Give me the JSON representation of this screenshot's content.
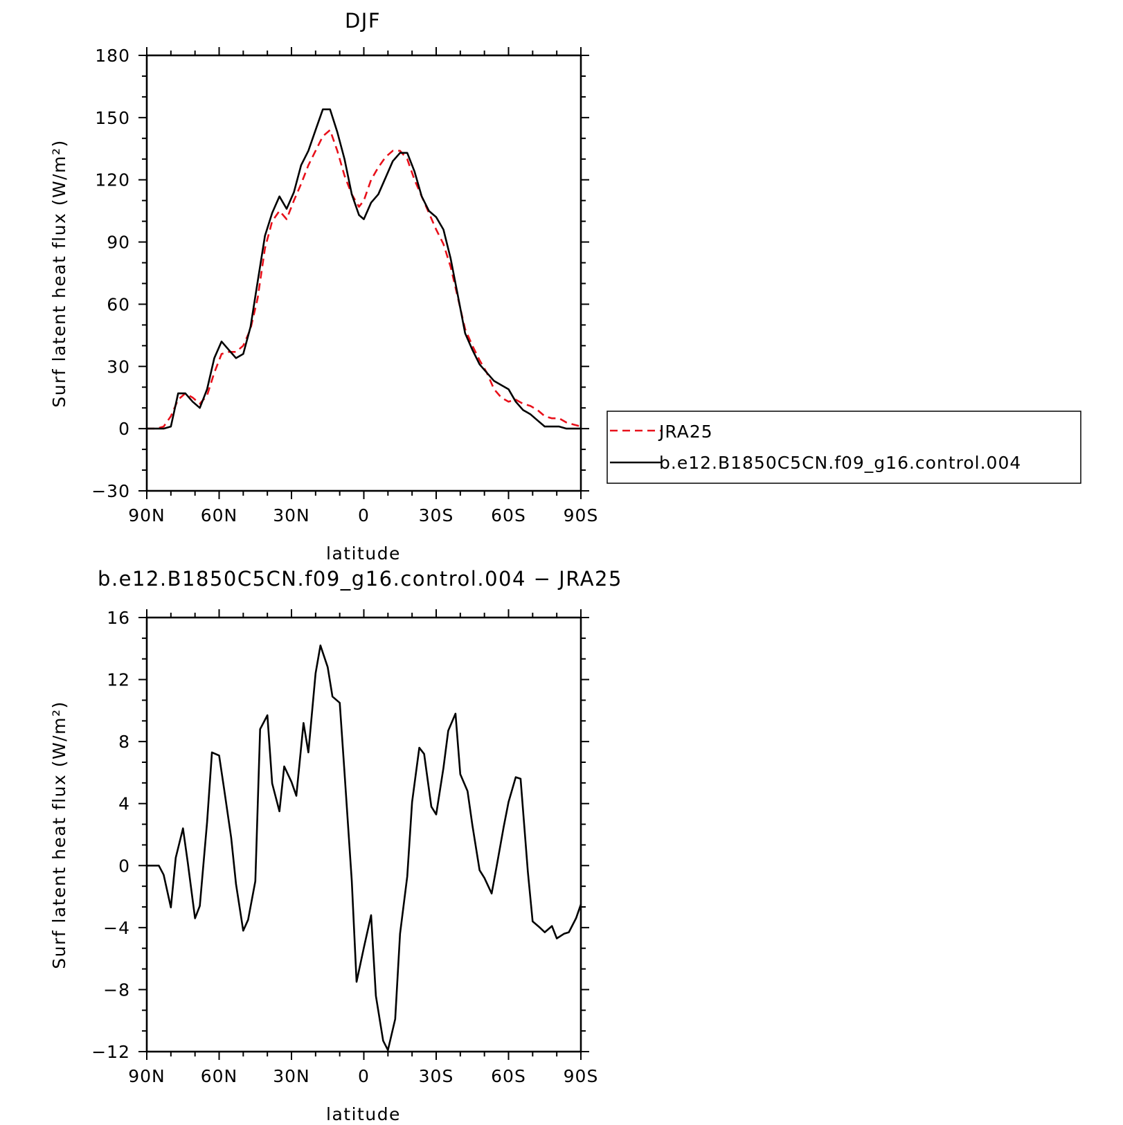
{
  "chart_data": [
    {
      "type": "line",
      "title": "DJF",
      "xlabel": "latitude",
      "ylabel": "Surf latent heat flux (W/m²)",
      "xlim": [
        90,
        -90
      ],
      "ylim": [
        -30,
        180
      ],
      "xticks": [
        {
          "value": 90,
          "label": "90N"
        },
        {
          "value": 60,
          "label": "60N"
        },
        {
          "value": 30,
          "label": "30N"
        },
        {
          "value": 0,
          "label": "0"
        },
        {
          "value": -30,
          "label": "30S"
        },
        {
          "value": -60,
          "label": "60S"
        },
        {
          "value": -90,
          "label": "90S"
        }
      ],
      "yticks": [
        -30,
        0,
        30,
        60,
        90,
        120,
        150,
        180
      ],
      "legend_position": "right",
      "series": [
        {
          "name": "JRA25",
          "color": "#e8101a",
          "dash": true,
          "x": [
            90,
            86,
            83,
            80,
            77,
            74,
            71,
            68,
            65,
            62,
            59,
            56,
            53,
            50,
            47,
            44,
            41,
            38,
            35,
            32,
            29,
            26,
            23,
            20,
            17,
            14,
            11,
            8,
            5,
            2,
            0,
            -3,
            -6,
            -9,
            -12,
            -15,
            -18,
            -21,
            -24,
            -27,
            -30,
            -33,
            -36,
            -39,
            -42,
            -45,
            -48,
            -51,
            -54,
            -57,
            -60,
            -63,
            -66,
            -69,
            -72,
            -75,
            -78,
            -81,
            -84,
            -87,
            -90
          ],
          "y": [
            0,
            0,
            1,
            6,
            14,
            17,
            15,
            12,
            16,
            27,
            36,
            37,
            37,
            40,
            48,
            63,
            87,
            100,
            105,
            101,
            110,
            118,
            127,
            134,
            141,
            144,
            134,
            122,
            113,
            107,
            110,
            120,
            126,
            131,
            134,
            134,
            130,
            120,
            112,
            104,
            96,
            89,
            78,
            63,
            48,
            40,
            33,
            27,
            19,
            15,
            13,
            14,
            12,
            11,
            9,
            6,
            5,
            5,
            3,
            2,
            1
          ]
        },
        {
          "name": "b.e12.B1850C5CN.f09_g16.control.004",
          "color": "#000000",
          "dash": false,
          "x": [
            90,
            86,
            83,
            80,
            77,
            74,
            71,
            68,
            65,
            62,
            59,
            56,
            53,
            50,
            47,
            44,
            41,
            38,
            35,
            32,
            29,
            26,
            23,
            20,
            17,
            14,
            11,
            8,
            5,
            2,
            0,
            -3,
            -6,
            -9,
            -12,
            -15,
            -18,
            -21,
            -24,
            -27,
            -30,
            -33,
            -36,
            -39,
            -42,
            -45,
            -48,
            -51,
            -54,
            -57,
            -60,
            -63,
            -66,
            -69,
            -72,
            -75,
            -78,
            -81,
            -84,
            -87,
            -90
          ],
          "y": [
            0,
            0,
            0,
            1,
            17,
            17,
            13,
            10,
            19,
            34,
            42,
            38,
            34,
            36,
            49,
            71,
            93,
            104,
            112,
            106,
            114,
            127,
            134,
            144,
            154,
            154,
            143,
            130,
            113,
            103,
            101,
            109,
            113,
            121,
            129,
            133,
            133,
            124,
            112,
            105,
            102,
            96,
            82,
            64,
            46,
            38,
            31,
            27,
            23,
            21,
            19,
            13,
            9,
            7,
            4,
            1,
            1,
            1,
            0,
            0,
            0
          ]
        }
      ]
    },
    {
      "type": "line",
      "title": "b.e12.B1850C5CN.f09_g16.control.004 − JRA25",
      "xlabel": "latitude",
      "ylabel": "Surf latent heat flux (W/m²)",
      "xlim": [
        90,
        -90
      ],
      "ylim": [
        -12,
        16
      ],
      "xticks": [
        {
          "value": 90,
          "label": "90N"
        },
        {
          "value": 60,
          "label": "60N"
        },
        {
          "value": 30,
          "label": "30N"
        },
        {
          "value": 0,
          "label": "0"
        },
        {
          "value": -30,
          "label": "30S"
        },
        {
          "value": -60,
          "label": "60S"
        },
        {
          "value": -90,
          "label": "90S"
        }
      ],
      "yticks": [
        -12,
        -8,
        -4,
        0,
        4,
        8,
        12,
        16
      ],
      "series": [
        {
          "color": "#000000",
          "dash": false,
          "x": [
            90,
            87,
            85,
            83,
            80,
            78,
            75,
            73,
            70,
            68,
            65,
            63,
            60,
            58,
            55,
            53,
            50,
            48,
            45,
            43,
            40,
            38,
            35,
            33,
            30,
            28,
            25,
            23,
            20,
            18,
            15,
            13,
            10,
            8,
            5,
            3,
            0,
            -3,
            -5,
            -8,
            -10,
            -13,
            -15,
            -18,
            -20,
            -23,
            -25,
            -28,
            -30,
            -33,
            -35,
            -38,
            -40,
            -43,
            -45,
            -48,
            -50,
            -53,
            -55,
            -58,
            -60,
            -63,
            -65,
            -68,
            -70,
            -73,
            -75,
            -78,
            -80,
            -83,
            -85,
            -88,
            -90
          ],
          "y": [
            0,
            0,
            0,
            -0.6,
            -2.7,
            0.5,
            2.4,
            0.2,
            -3.4,
            -2.6,
            2.8,
            7.3,
            7.1,
            5.0,
            1.8,
            -1.2,
            -4.2,
            -3.5,
            -1.0,
            8.8,
            9.7,
            5.3,
            3.5,
            6.4,
            5.4,
            4.5,
            9.2,
            7.3,
            12.4,
            14.2,
            12.8,
            10.9,
            10.5,
            6.0,
            -1.0,
            -7.5,
            -5.3,
            -3.2,
            -8.4,
            -11.3,
            -11.9,
            -9.9,
            -4.4,
            -0.7,
            4.1,
            7.6,
            7.2,
            3.8,
            3.3,
            6.3,
            8.7,
            9.8,
            5.9,
            4.8,
            2.6,
            -0.3,
            -0.8,
            -1.8,
            -0.1,
            2.5,
            4.1,
            5.7,
            5.6,
            -0.4,
            -3.6,
            -4.0,
            -4.3,
            -3.9,
            -4.7,
            -4.4,
            -4.3,
            -3.4,
            -2.5
          ]
        }
      ]
    }
  ]
}
